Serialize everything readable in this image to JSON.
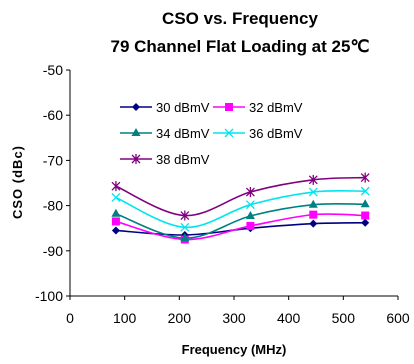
{
  "chart_data": {
    "type": "line",
    "title": "CSO vs. Frequency",
    "subtitle": "79 Channel Flat Loading at 25℃",
    "xlabel": "Frequency (MHz)",
    "ylabel": "CSO (dBc)",
    "xlim": [
      0,
      600
    ],
    "ylim": [
      -100,
      -50
    ],
    "xticks": [
      "0",
      "100",
      "200",
      "300",
      "400",
      "500",
      "600"
    ],
    "yticks": [
      "-50",
      "-60",
      "-70",
      "-80",
      "-90",
      "-100"
    ],
    "grid": false,
    "legend_position": "top-left-inside",
    "x": [
      84,
      210,
      330,
      445,
      540
    ],
    "series": [
      {
        "name": "30 dBmV",
        "color": "#000080",
        "marker": "diamond",
        "values": [
          -85.5,
          -86.5,
          -85,
          -84,
          -83.8
        ]
      },
      {
        "name": "32 dBmV",
        "color": "#ff00ff",
        "marker": "square",
        "values": [
          -83.5,
          -87.5,
          -84.5,
          -82,
          -82.2
        ]
      },
      {
        "name": "34 dBmV",
        "color": "#008080",
        "marker": "triangle",
        "values": [
          -81.8,
          -87.2,
          -82.3,
          -79.8,
          -79.7
        ]
      },
      {
        "name": "36 dBmV",
        "color": "#00e5ee",
        "marker": "x",
        "values": [
          -78.2,
          -84.8,
          -79.8,
          -77,
          -76.8
        ]
      },
      {
        "name": "38 dBmV",
        "color": "#800080",
        "marker": "star",
        "values": [
          -75.7,
          -82.2,
          -77,
          -74.3,
          -73.8
        ]
      }
    ]
  }
}
